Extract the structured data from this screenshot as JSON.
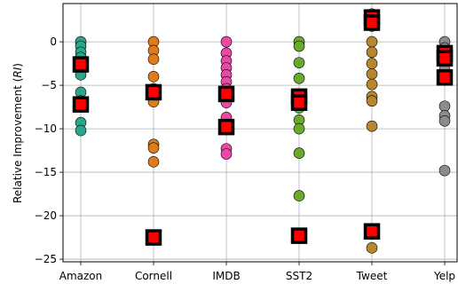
{
  "chart_data": {
    "type": "scatter",
    "title": "",
    "xlabel": "",
    "ylabel_prefix": "Relative Improvement (",
    "ylabel_italic": "RI",
    "ylabel_suffix": ")",
    "categories": [
      "Amazon",
      "Cornell",
      "IMDB",
      "SST2",
      "Tweet",
      "Yelp"
    ],
    "ylim": [
      -25.3,
      4.4
    ],
    "yticks": [
      0,
      -5,
      -10,
      -15,
      -20,
      -25
    ],
    "ytick_labels": [
      "0",
      "−5",
      "−10",
      "−15",
      "−20",
      "−25"
    ],
    "grid": true,
    "colors": {
      "Amazon": "#2ca58d",
      "Cornell": "#e07b1a",
      "IMDB": "#e84aa6",
      "SST2": "#6aaa2a",
      "Tweet": "#b8862e",
      "Yelp": "#8c8c8c",
      "highlight_fill": "#ff0000",
      "highlight_edge": "#000000"
    },
    "series": [
      {
        "category": "Amazon",
        "points": [
          0,
          -0.5,
          -1.2,
          -1.8,
          -2.8,
          -3.8,
          -5.8,
          -6.8,
          -7.4,
          -9.3,
          -10.2
        ],
        "highlight": [
          -2.6,
          -7.2
        ]
      },
      {
        "category": "Cornell",
        "points": [
          0,
          -1.0,
          -2.0,
          -4.0,
          -5.4,
          -6.3,
          -6.9,
          -11.8,
          -12.2,
          -13.8,
          -22.3
        ],
        "highlight": [
          -5.8,
          -22.5
        ]
      },
      {
        "category": "IMDB",
        "points": [
          0,
          -1.3,
          -2.2,
          -3.0,
          -3.8,
          -4.6,
          -5.4,
          -6.2,
          -7.0,
          -8.7,
          -9.8,
          -12.3,
          -12.9
        ],
        "highlight": [
          -6.0,
          -9.8
        ]
      },
      {
        "category": "SST2",
        "points": [
          0,
          -0.5,
          -2.4,
          -4.2,
          -6.0,
          -6.8,
          -7.6,
          -9.0,
          -10.0,
          -12.8,
          -17.7,
          -22.2
        ],
        "highlight": [
          -6.3,
          -7.0,
          -22.3
        ]
      },
      {
        "category": "Tweet",
        "points": [
          3.2,
          1.8,
          0,
          -1.2,
          -2.5,
          -3.7,
          -4.9,
          -6.3,
          -6.8,
          -9.7,
          -21.9,
          -23.7
        ],
        "highlight": [
          2.8,
          2.2,
          -21.8
        ]
      },
      {
        "category": "Yelp",
        "points": [
          0,
          -0.7,
          -1.4,
          -2.2,
          -3.2,
          -4.0,
          -7.4,
          -8.5,
          -9.1,
          -14.8
        ],
        "highlight": [
          -1.3,
          -1.9,
          -4.1
        ]
      }
    ]
  }
}
